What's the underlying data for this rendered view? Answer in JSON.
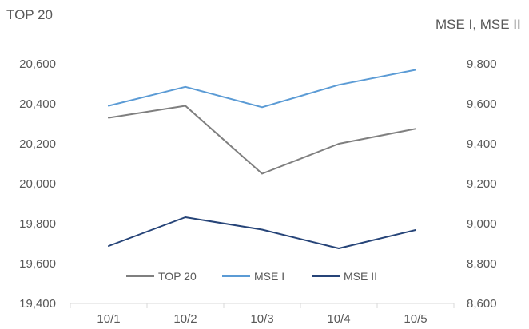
{
  "chart_data": {
    "type": "line",
    "categories": [
      "10/1",
      "10/2",
      "10/3",
      "10/4",
      "10/5"
    ],
    "left_axis": {
      "title": "TOP 20",
      "range": [
        19400,
        20600
      ],
      "ticks": [
        "19,400",
        "19,600",
        "19,800",
        "20,000",
        "20,200",
        "20,400",
        "20,600"
      ]
    },
    "right_axis": {
      "title": "MSE I, MSE II",
      "range": [
        8600,
        9800
      ],
      "ticks": [
        "8,600",
        "8,800",
        "9,000",
        "9,200",
        "9,400",
        "9,600",
        "9,800"
      ]
    },
    "series": [
      {
        "name": "TOP 20",
        "axis": "left",
        "color": "#7f7f7f",
        "values": [
          20330,
          20390,
          20050,
          20200,
          20275
        ]
      },
      {
        "name": "MSE I",
        "axis": "right",
        "color": "#5b9bd5",
        "values": [
          9590,
          9685,
          9583,
          9695,
          9770
        ]
      },
      {
        "name": "MSE II",
        "axis": "right",
        "color": "#264478",
        "values": [
          8888,
          9032,
          8970,
          8876,
          8968
        ]
      }
    ],
    "legend_position": "bottom-inside",
    "grid": false
  }
}
